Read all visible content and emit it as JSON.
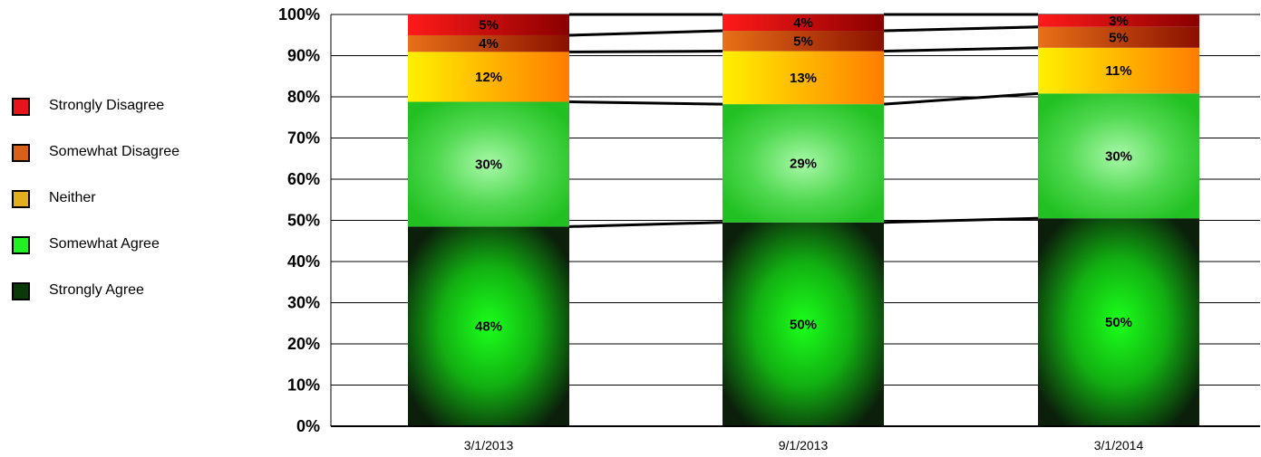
{
  "chart_data": {
    "type": "bar",
    "stacked": true,
    "percent": true,
    "categories": [
      "3/1/2013",
      "9/1/2013",
      "3/1/2014"
    ],
    "series": [
      {
        "name": "Strongly Agree",
        "values": [
          48,
          50,
          50
        ],
        "labels": [
          "48%",
          "50%",
          "50%"
        ]
      },
      {
        "name": "Somewhat Agree",
        "values": [
          30,
          29,
          30
        ],
        "labels": [
          "30%",
          "29%",
          "30%"
        ]
      },
      {
        "name": "Neither",
        "values": [
          12,
          13,
          11
        ],
        "labels": [
          "12%",
          "13%",
          "11%"
        ]
      },
      {
        "name": "Somewhat Disagree",
        "values": [
          4,
          5,
          5
        ],
        "labels": [
          "4%",
          "5%",
          "5%"
        ]
      },
      {
        "name": "Strongly Disagree",
        "values": [
          5,
          4,
          3
        ],
        "labels": [
          "5%",
          "4%",
          "3%"
        ]
      }
    ],
    "ylim": [
      0,
      100
    ],
    "yticks": [
      "0%",
      "10%",
      "20%",
      "30%",
      "40%",
      "50%",
      "60%",
      "70%",
      "80%",
      "90%",
      "100%"
    ],
    "grid": true,
    "series_connectors": true,
    "legend": {
      "position": "left",
      "items": [
        {
          "name": "Strongly Disagree",
          "color": "#e8141c"
        },
        {
          "name": "Somewhat Disagree",
          "color": "#d8601a"
        },
        {
          "name": "Neither",
          "color": "#e0b020"
        },
        {
          "name": "Somewhat Agree",
          "color": "#22f022"
        },
        {
          "name": "Strongly Agree",
          "color": "#0a3a0a"
        }
      ]
    }
  }
}
